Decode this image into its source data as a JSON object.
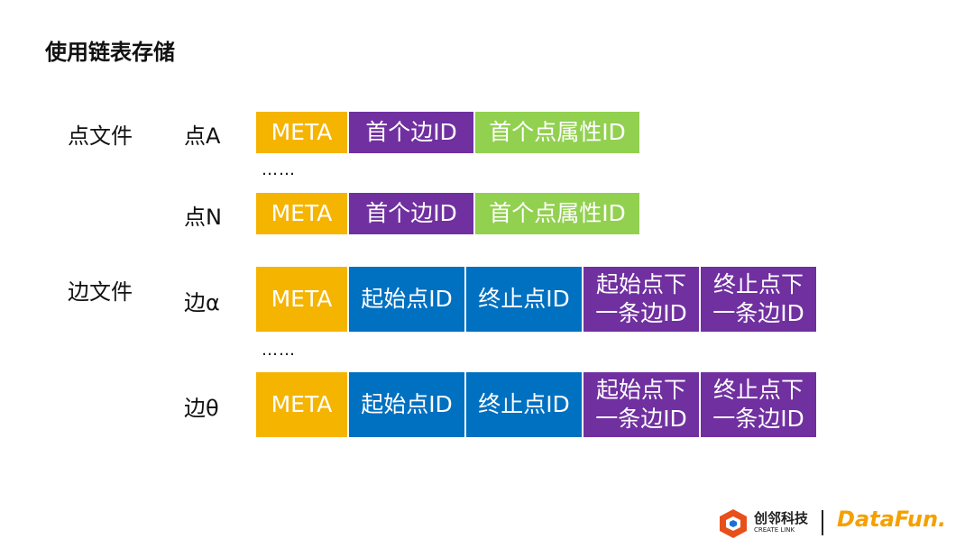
{
  "title": "使用链表存储",
  "sections": [
    {
      "label": "点文件"
    },
    {
      "label": "边文件"
    }
  ],
  "rows": [
    {
      "label": "点A",
      "cells": [
        {
          "lines": [
            "META"
          ],
          "color": "#f5b400"
        },
        {
          "lines": [
            "首个边ID"
          ],
          "color": "#7030a0"
        },
        {
          "lines": [
            "首个点属性ID"
          ],
          "color": "#92d050"
        }
      ]
    },
    {
      "label": "点N",
      "cells": [
        {
          "lines": [
            "META"
          ],
          "color": "#f5b400"
        },
        {
          "lines": [
            "首个边ID"
          ],
          "color": "#7030a0"
        },
        {
          "lines": [
            "首个点属性ID"
          ],
          "color": "#92d050"
        }
      ]
    },
    {
      "label": "边α",
      "cells": [
        {
          "lines": [
            "META"
          ],
          "color": "#f5b400"
        },
        {
          "lines": [
            "起始点ID"
          ],
          "color": "#0070c0"
        },
        {
          "lines": [
            "终止点ID"
          ],
          "color": "#0070c0"
        },
        {
          "lines": [
            "起始点下",
            "一条边ID"
          ],
          "color": "#7030a0"
        },
        {
          "lines": [
            "终止点下",
            "一条边ID"
          ],
          "color": "#7030a0"
        }
      ]
    },
    {
      "label": "边θ",
      "cells": [
        {
          "lines": [
            "META"
          ],
          "color": "#f5b400"
        },
        {
          "lines": [
            "起始点ID"
          ],
          "color": "#0070c0"
        },
        {
          "lines": [
            "终止点ID"
          ],
          "color": "#0070c0"
        },
        {
          "lines": [
            "起始点下",
            "一条边ID"
          ],
          "color": "#7030a0"
        },
        {
          "lines": [
            "终止点下",
            "一条边ID"
          ],
          "color": "#7030a0"
        }
      ]
    }
  ],
  "ellipses": [
    "……",
    "……"
  ],
  "logos": {
    "brand": "创邻科技",
    "brand_en": "CREATE LINK",
    "partner": "DataFun."
  }
}
